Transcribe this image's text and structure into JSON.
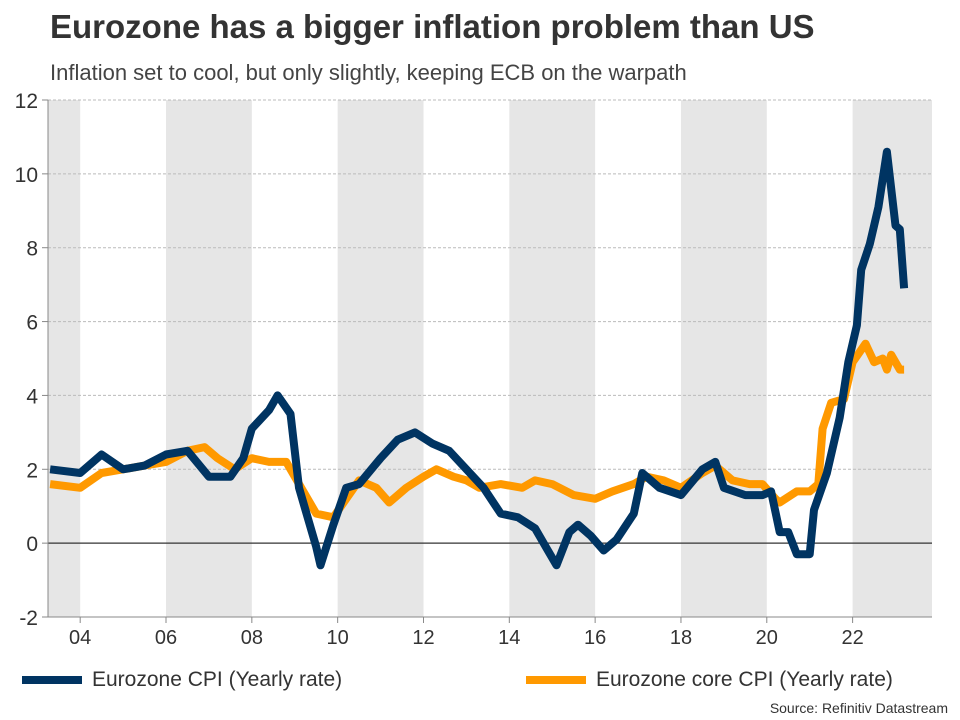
{
  "chart_data": {
    "type": "line",
    "title": "Eurozone has a bigger inflation problem than US",
    "subtitle": "Inflation set to cool, but only slightly, keeping ECB on the warpath",
    "source": "Source: Refinitiv Datastream",
    "xlim": [
      2003.25,
      2023.85
    ],
    "ylim": [
      -2,
      12
    ],
    "yticks": [
      -2,
      0,
      2,
      4,
      6,
      8,
      10,
      12
    ],
    "xticks": [
      {
        "x": 2004,
        "label": "04"
      },
      {
        "x": 2006,
        "label": "06"
      },
      {
        "x": 2008,
        "label": "08"
      },
      {
        "x": 2010,
        "label": "10"
      },
      {
        "x": 2012,
        "label": "12"
      },
      {
        "x": 2014,
        "label": "14"
      },
      {
        "x": 2016,
        "label": "16"
      },
      {
        "x": 2018,
        "label": "18"
      },
      {
        "x": 2020,
        "label": "20"
      },
      {
        "x": 2022,
        "label": "22"
      }
    ],
    "grid": true,
    "shaded_bands": [
      [
        2003.25,
        2004
      ],
      [
        2006,
        2008
      ],
      [
        2010,
        2012
      ],
      [
        2014,
        2016
      ],
      [
        2018,
        2020
      ],
      [
        2022,
        2023.85
      ]
    ],
    "legend_position": "bottom",
    "series": [
      {
        "name": "Eurozone CPI (Yearly rate)",
        "color": "#003462",
        "x": [
          2003.3,
          2004.0,
          2004.5,
          2005.0,
          2005.5,
          2006.0,
          2006.5,
          2007.0,
          2007.5,
          2007.8,
          2008.0,
          2008.4,
          2008.6,
          2008.9,
          2009.1,
          2009.5,
          2009.6,
          2009.9,
          2010.2,
          2010.5,
          2011.0,
          2011.4,
          2011.8,
          2012.2,
          2012.6,
          2013.0,
          2013.4,
          2013.8,
          2014.2,
          2014.6,
          2014.9,
          2015.1,
          2015.4,
          2015.6,
          2015.9,
          2016.2,
          2016.5,
          2016.9,
          2017.1,
          2017.5,
          2018.0,
          2018.5,
          2018.8,
          2019.0,
          2019.5,
          2019.9,
          2020.1,
          2020.3,
          2020.5,
          2020.7,
          2021.0,
          2021.1,
          2021.4,
          2021.7,
          2021.9,
          2022.1,
          2022.2,
          2022.4,
          2022.6,
          2022.8,
          2023.0,
          2023.1,
          2023.2
        ],
        "y": [
          2.0,
          1.9,
          2.4,
          2.0,
          2.1,
          2.4,
          2.5,
          1.8,
          1.8,
          2.3,
          3.1,
          3.6,
          4.0,
          3.5,
          1.5,
          -0.1,
          -0.6,
          0.5,
          1.5,
          1.6,
          2.3,
          2.8,
          3.0,
          2.7,
          2.5,
          2.0,
          1.5,
          0.8,
          0.7,
          0.4,
          -0.2,
          -0.6,
          0.3,
          0.5,
          0.2,
          -0.2,
          0.1,
          0.8,
          1.9,
          1.5,
          1.3,
          2.0,
          2.2,
          1.5,
          1.3,
          1.3,
          1.4,
          0.3,
          0.3,
          -0.3,
          -0.3,
          0.9,
          1.9,
          3.4,
          4.9,
          5.9,
          7.4,
          8.1,
          9.1,
          10.6,
          8.6,
          8.5,
          6.9
        ]
      },
      {
        "name": "Eurozone core CPI (Yearly rate)",
        "color": "#FF9900",
        "x": [
          2003.3,
          2004.0,
          2004.5,
          2005.0,
          2005.5,
          2006.0,
          2006.5,
          2006.9,
          2007.2,
          2007.6,
          2008.0,
          2008.4,
          2008.8,
          2009.2,
          2009.5,
          2009.9,
          2010.2,
          2010.5,
          2010.9,
          2011.2,
          2011.6,
          2012.0,
          2012.3,
          2012.7,
          2013.0,
          2013.3,
          2013.8,
          2014.3,
          2014.6,
          2015.0,
          2015.5,
          2016.0,
          2016.4,
          2016.9,
          2017.2,
          2017.6,
          2018.0,
          2018.5,
          2018.8,
          2019.2,
          2019.6,
          2019.9,
          2020.2,
          2020.3,
          2020.7,
          2021.0,
          2021.2,
          2021.3,
          2021.5,
          2021.8,
          2022.0,
          2022.3,
          2022.5,
          2022.7,
          2022.8,
          2022.9,
          2023.1,
          2023.2
        ],
        "y": [
          1.6,
          1.5,
          1.9,
          2.0,
          2.1,
          2.2,
          2.5,
          2.6,
          2.3,
          2.0,
          2.3,
          2.2,
          2.2,
          1.4,
          0.8,
          0.7,
          1.2,
          1.7,
          1.5,
          1.1,
          1.5,
          1.8,
          2.0,
          1.8,
          1.7,
          1.5,
          1.6,
          1.5,
          1.7,
          1.6,
          1.3,
          1.2,
          1.4,
          1.6,
          1.8,
          1.7,
          1.5,
          1.9,
          2.1,
          1.7,
          1.6,
          1.6,
          1.2,
          1.1,
          1.4,
          1.4,
          1.6,
          3.1,
          3.8,
          3.9,
          4.9,
          5.4,
          4.9,
          5.0,
          4.7,
          5.1,
          4.7,
          4.7
        ]
      }
    ]
  }
}
